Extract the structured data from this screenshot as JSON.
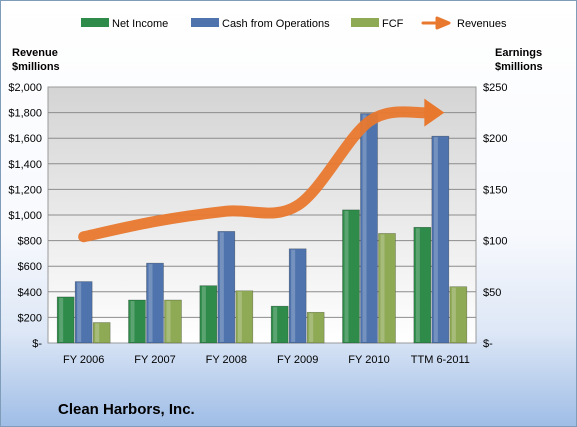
{
  "company_name": "Clean Harbors, Inc.",
  "colors": {
    "net_income": "#2e8b4a",
    "cash_from_operations": "#4f74ad",
    "fcf": "#8faa55",
    "revenues": "#e8782e",
    "plot_top": "#d4d4d4",
    "plot_bottom": "#ffffff"
  },
  "chart_data": {
    "type": "bar",
    "categories": [
      "FY 2006",
      "FY 2007",
      "FY 2008",
      "FY 2009",
      "FY 2010",
      "TTM 6-2011"
    ],
    "left_axis": {
      "label_line1": "Revenue",
      "label_line2": "$millions",
      "ylim": [
        0,
        2000
      ],
      "ticks": [
        "$-",
        "$200",
        "$400",
        "$600",
        "$800",
        "$1,000",
        "$1,200",
        "$1,400",
        "$1,600",
        "$1,800",
        "$2,000"
      ]
    },
    "right_axis": {
      "label_line1": "Earnings",
      "label_line2": "$millions",
      "ylim": [
        0,
        250
      ],
      "ticks": [
        "$-",
        "$50",
        "$100",
        "$150",
        "$200",
        "$250"
      ]
    },
    "series": [
      {
        "name": "Net Income",
        "axis": "right",
        "kind": "bar",
        "values": [
          45,
          42,
          56,
          36,
          130,
          113
        ]
      },
      {
        "name": "Cash from Operations",
        "axis": "right",
        "kind": "bar",
        "values": [
          60,
          78,
          109,
          92,
          224,
          202
        ]
      },
      {
        "name": "FCF",
        "axis": "right",
        "kind": "bar",
        "values": [
          20,
          42,
          51,
          30,
          107,
          55
        ]
      },
      {
        "name": "Revenues",
        "axis": "left",
        "kind": "line",
        "values": [
          830,
          950,
          1030,
          1075,
          1730,
          1800
        ]
      }
    ],
    "legend_position": "top",
    "grid": true
  }
}
